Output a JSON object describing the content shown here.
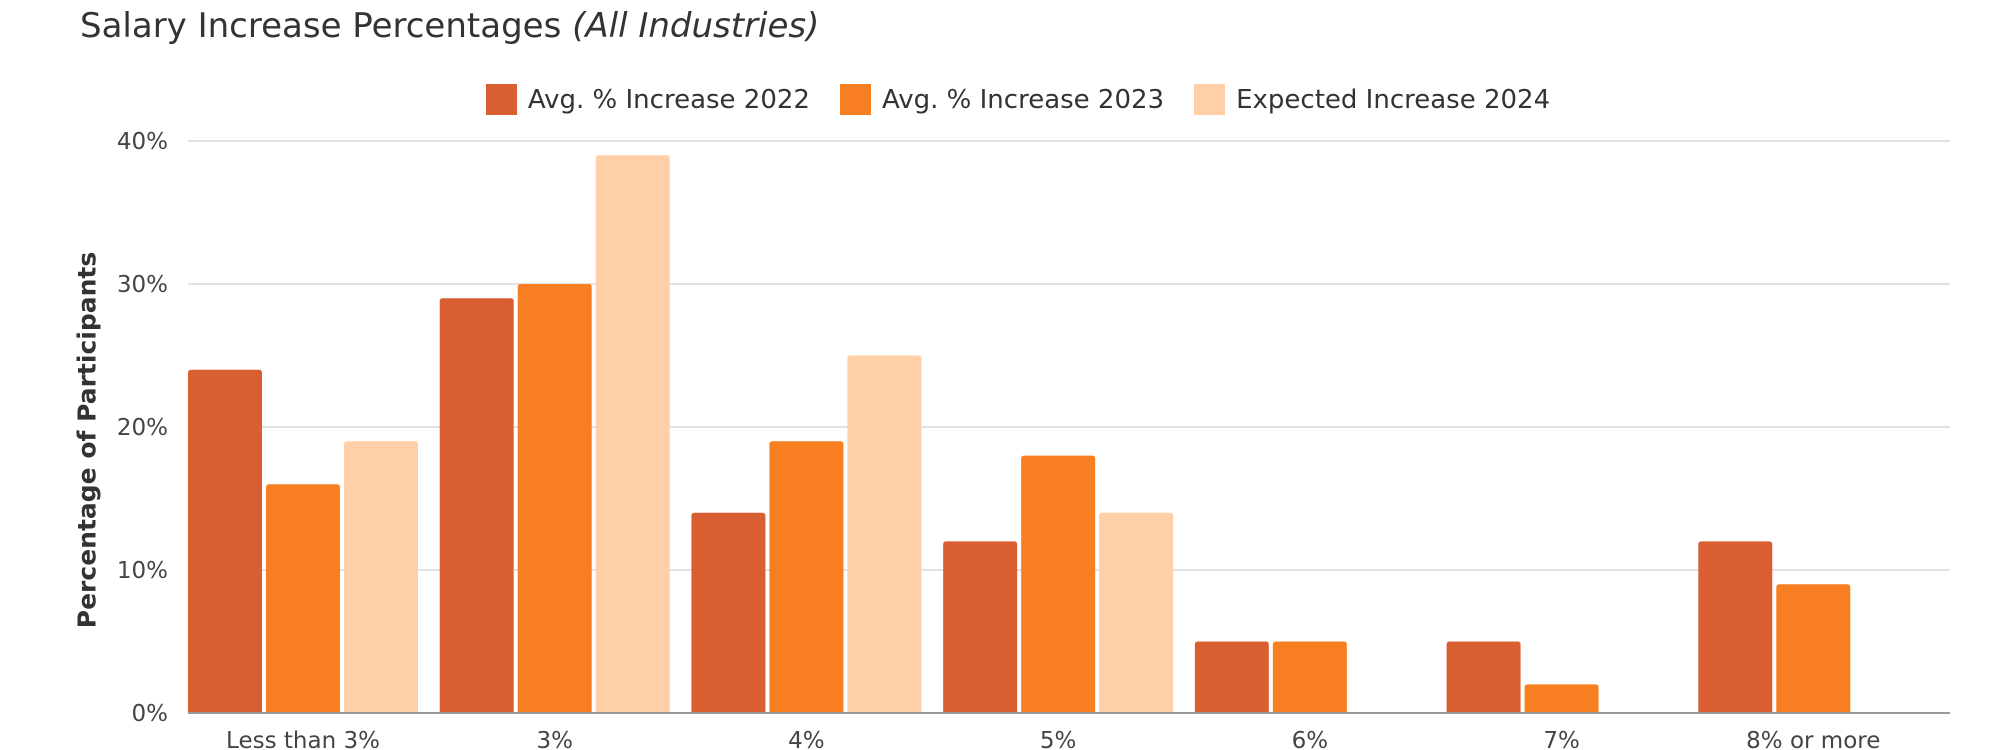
{
  "chart_data": {
    "type": "bar",
    "title": "Salary Increase Percentages",
    "subtitle": "(All Industries)",
    "xlabel": "",
    "ylabel": "Percentage of Participants",
    "categories": [
      "Less than 3%",
      "3%",
      "4%",
      "5%",
      "6%",
      "7%",
      "8% or more"
    ],
    "series": [
      {
        "name": "Avg. % Increase 2022",
        "color": "#D95F33",
        "values": [
          24,
          29,
          14,
          12,
          5,
          5,
          12
        ]
      },
      {
        "name": "Avg. % Increase 2023",
        "color": "#F77F22",
        "values": [
          16,
          30,
          19,
          18,
          5,
          2,
          9
        ]
      },
      {
        "name": "Expected Increase 2024",
        "color": "#FFCFA8",
        "values": [
          19,
          39,
          25,
          14,
          0,
          0,
          0
        ]
      }
    ],
    "ylim": [
      0,
      40
    ],
    "yticks": [
      0,
      10,
      20,
      30,
      40
    ],
    "ytick_labels": [
      "0%",
      "10%",
      "20%",
      "30%",
      "40%"
    ],
    "grid": true,
    "legend_position": "top-center"
  }
}
